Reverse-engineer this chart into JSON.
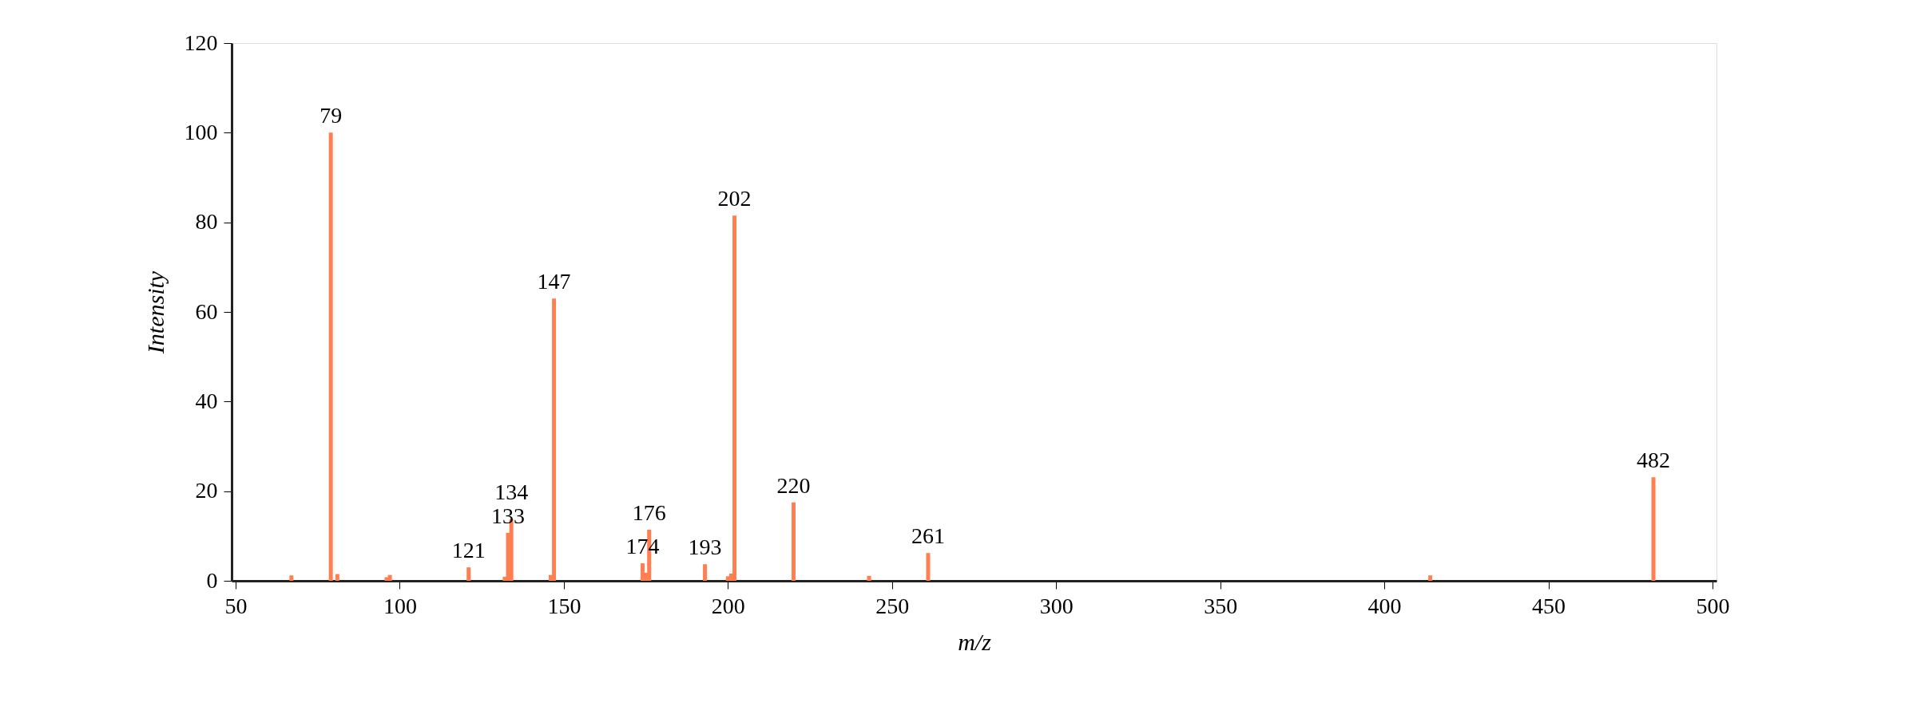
{
  "chart_data": {
    "type": "bar",
    "xlabel": "m/z",
    "ylabel": "Intensity",
    "x": [
      67,
      79,
      81,
      96,
      97,
      121,
      132,
      133,
      134,
      146,
      147,
      174,
      175,
      176,
      193,
      200,
      201,
      202,
      220,
      243,
      261,
      414,
      482
    ],
    "series": [
      {
        "color": "#ff7f50",
        "values": [
          1.2,
          100,
          1.5,
          0.8,
          1.3,
          3.0,
          0.9,
          10.7,
          13.7,
          1.3,
          63,
          3.9,
          1.8,
          11.4,
          3.7,
          1.0,
          1.6,
          81.5,
          17.5,
          1.1,
          6.2,
          1.2,
          23.1
        ]
      }
    ],
    "annotations": [
      {
        "text": "79",
        "x": 79,
        "y": 100
      },
      {
        "text": "121",
        "x": 121,
        "y": 3.0
      },
      {
        "text": "133",
        "x": 133,
        "y": 10.7
      },
      {
        "text": "134",
        "x": 134,
        "y": 13.7
      },
      {
        "text": "147",
        "x": 147,
        "y": 63
      },
      {
        "text": "174",
        "x": 174,
        "y": 3.9
      },
      {
        "text": "176",
        "x": 176,
        "y": 11.4
      },
      {
        "text": "193",
        "x": 193,
        "y": 3.7
      },
      {
        "text": "202",
        "x": 202,
        "y": 81.5
      },
      {
        "text": "220",
        "x": 220,
        "y": 17.5
      },
      {
        "text": "261",
        "x": 261,
        "y": 6.2
      },
      {
        "text": "482",
        "x": 482,
        "y": 23.1
      }
    ],
    "xlim": [
      50,
      500
    ],
    "xticks": [
      50,
      100,
      150,
      200,
      250,
      300,
      350,
      400,
      450,
      500
    ],
    "ylim": [
      0,
      120
    ],
    "yticks": [
      0,
      20,
      40,
      60,
      80,
      100,
      120
    ],
    "grid": false
  }
}
